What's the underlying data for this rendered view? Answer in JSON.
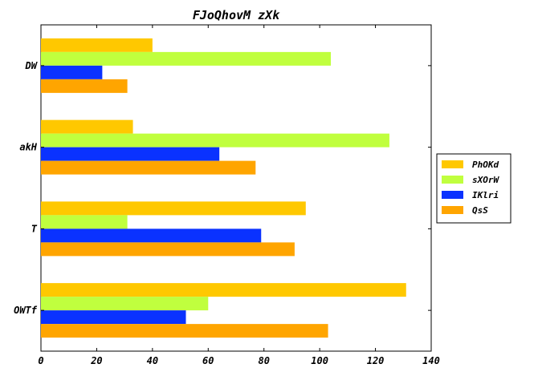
{
  "chart_data": {
    "type": "bar",
    "orientation": "horizontal",
    "title": "FJoQhovM zXk",
    "xlabel": "",
    "ylabel": "",
    "xlim": [
      0,
      140
    ],
    "xticks": [
      0,
      20,
      40,
      60,
      80,
      100,
      120,
      140
    ],
    "categories": [
      "DW",
      "akH",
      "T",
      "OWTf"
    ],
    "series": [
      {
        "name": "PhOKd",
        "color": "#ffc800",
        "values": [
          40,
          33,
          95,
          131
        ]
      },
      {
        "name": "sXOrW",
        "color": "#c0ff3e",
        "values": [
          104,
          125,
          31,
          60
        ]
      },
      {
        "name": "IKlri",
        "color": "#0a32ff",
        "values": [
          22,
          64,
          79,
          52
        ]
      },
      {
        "name": "QsS",
        "color": "#ffa500",
        "values": [
          31,
          77,
          91,
          103
        ]
      }
    ],
    "grid": false,
    "legend_position": "right"
  }
}
